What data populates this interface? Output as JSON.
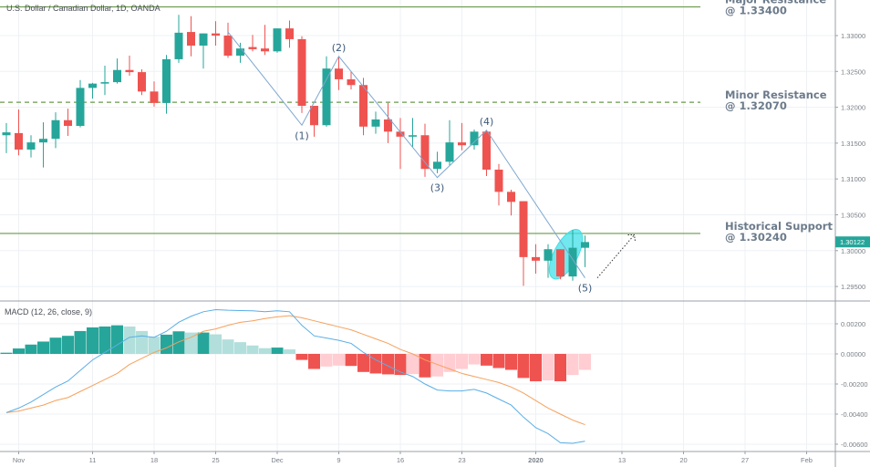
{
  "header": {
    "title": "U.S. Dollar / Canadian Dollar, 1D, OANDA"
  },
  "indicator": {
    "title": "MACD (12, 26, close, 9)"
  },
  "colors": {
    "up": "#26a69a",
    "down": "#ef5350",
    "hist_up_strong": "#26a69a",
    "hist_up_weak": "#b2dfdb",
    "hist_down_strong": "#ef5350",
    "hist_down_weak": "#ffcdd2",
    "macd_line": "#5aaee6",
    "signal_line": "#f6a15c",
    "level_line": "#6a9a4a",
    "highlight": "#40e0e8",
    "wave_line": "#7ea7cf"
  },
  "chart_data": [
    {
      "type": "candlestick",
      "title": "U.S. Dollar / Canadian Dollar, 1D, OANDA",
      "ylim": [
        1.2935,
        1.3385
      ],
      "y_ticks": [
        "1.33000",
        "1.32500",
        "1.32000",
        "1.31500",
        "1.31000",
        "1.30500",
        "1.30000",
        "1.29500"
      ],
      "last_price": "1.30122",
      "grid": true,
      "candles_columns": [
        "date",
        "open",
        "high",
        "low",
        "close"
      ],
      "candles": [
        [
          "2019-10-31",
          1.3161,
          1.3178,
          1.3136,
          1.3165
        ],
        [
          "2019-11-01",
          1.3164,
          1.3197,
          1.3133,
          1.3141
        ],
        [
          "2019-11-04",
          1.3141,
          1.3161,
          1.313,
          1.3151
        ],
        [
          "2019-11-05",
          1.3151,
          1.3179,
          1.3116,
          1.3156
        ],
        [
          "2019-11-06",
          1.3156,
          1.3193,
          1.3143,
          1.3182
        ],
        [
          "2019-11-07",
          1.3182,
          1.3198,
          1.316,
          1.3174
        ],
        [
          "2019-11-08",
          1.3174,
          1.3238,
          1.3172,
          1.3227
        ],
        [
          "2019-11-11",
          1.3227,
          1.3234,
          1.3212,
          1.3233
        ],
        [
          "2019-11-12",
          1.3233,
          1.3258,
          1.3217,
          1.3235
        ],
        [
          "2019-11-13",
          1.3235,
          1.3268,
          1.3233,
          1.3252
        ],
        [
          "2019-11-14",
          1.3252,
          1.3272,
          1.3244,
          1.3249
        ],
        [
          "2019-11-15",
          1.3249,
          1.3253,
          1.3217,
          1.3222
        ],
        [
          "2019-11-18",
          1.3222,
          1.3236,
          1.3201,
          1.3206
        ],
        [
          "2019-11-19",
          1.3206,
          1.3273,
          1.3191,
          1.3267
        ],
        [
          "2019-11-20",
          1.3267,
          1.3329,
          1.3262,
          1.3304
        ],
        [
          "2019-11-21",
          1.3305,
          1.3327,
          1.3271,
          1.3286
        ],
        [
          "2019-11-22",
          1.3286,
          1.3303,
          1.3254,
          1.3303
        ],
        [
          "2019-11-25",
          1.3303,
          1.332,
          1.3286,
          1.33
        ],
        [
          "2019-11-26",
          1.33,
          1.3318,
          1.3269,
          1.3272
        ],
        [
          "2019-11-27",
          1.3272,
          1.329,
          1.3262,
          1.3282
        ],
        [
          "2019-11-28",
          1.3284,
          1.3301,
          1.3278,
          1.3281
        ],
        [
          "2019-11-29",
          1.3282,
          1.3315,
          1.3273,
          1.3278
        ],
        [
          "2019-12-02",
          1.3278,
          1.331,
          1.3276,
          1.331
        ],
        [
          "2019-12-03",
          1.331,
          1.3321,
          1.3283,
          1.3295
        ],
        [
          "2019-12-04",
          1.3295,
          1.3299,
          1.3192,
          1.3202
        ],
        [
          "2019-12-05",
          1.3202,
          1.3202,
          1.3159,
          1.3175
        ],
        [
          "2019-12-06",
          1.3175,
          1.3271,
          1.3173,
          1.3254
        ],
        [
          "2019-12-09",
          1.3254,
          1.3271,
          1.3224,
          1.3239
        ],
        [
          "2019-12-10",
          1.3239,
          1.325,
          1.3225,
          1.3231
        ],
        [
          "2019-12-11",
          1.3231,
          1.3241,
          1.3161,
          1.3173
        ],
        [
          "2019-12-12",
          1.3173,
          1.3194,
          1.3163,
          1.3183
        ],
        [
          "2019-12-13",
          1.3183,
          1.3206,
          1.315,
          1.3166
        ],
        [
          "2019-12-16",
          1.3166,
          1.3185,
          1.3114,
          1.3159
        ],
        [
          "2019-12-17",
          1.3159,
          1.3185,
          1.3145,
          1.3161
        ],
        [
          "2019-12-18",
          1.3161,
          1.3177,
          1.3103,
          1.3114
        ],
        [
          "2019-12-19",
          1.3114,
          1.3138,
          1.3108,
          1.3124
        ],
        [
          "2019-12-20",
          1.3124,
          1.3182,
          1.3118,
          1.3151
        ],
        [
          "2019-12-23",
          1.3151,
          1.3178,
          1.314,
          1.3147
        ],
        [
          "2019-12-24",
          1.3147,
          1.3169,
          1.3141,
          1.3166
        ],
        [
          "2019-12-26",
          1.3166,
          1.3168,
          1.3104,
          1.3113
        ],
        [
          "2019-12-27",
          1.3113,
          1.3121,
          1.3063,
          1.3082
        ],
        [
          "2019-12-30",
          1.3082,
          1.3085,
          1.3049,
          1.3068
        ],
        [
          "2019-12-31",
          1.3069,
          1.3069,
          1.2951,
          1.2991
        ],
        [
          "2020-01-02",
          1.2991,
          1.3009,
          1.2968,
          1.2986
        ],
        [
          "2020-01-03",
          1.2986,
          1.3009,
          1.2962,
          1.3002
        ],
        [
          "2020-01-06",
          1.3002,
          1.3002,
          1.296,
          1.2964
        ],
        [
          "2020-01-07",
          1.2964,
          1.3029,
          1.2958,
          1.3004
        ],
        [
          "2020-01-08",
          1.3004,
          1.3021,
          1.2977,
          1.3012
        ]
      ],
      "levels": [
        {
          "label_line1": "Major Resistance",
          "label_line2": "@ 1.33400",
          "price": 1.334,
          "style": "solid"
        },
        {
          "label_line1": "Minor Resistance",
          "label_line2": "@ 1.32070",
          "price": 1.3207,
          "style": "dashed"
        },
        {
          "label_line1": "Historical Support",
          "label_line2": "@ 1.30240",
          "price": 1.3024,
          "style": "solid"
        }
      ],
      "wave": [
        {
          "label": "",
          "date": "2019-11-26",
          "price": 1.3305
        },
        {
          "label": "(1)",
          "date": "2019-12-04",
          "price": 1.3175,
          "pos": "below"
        },
        {
          "label": "(2)",
          "date": "2019-12-09",
          "price": 1.3271,
          "pos": "above"
        },
        {
          "label": "(3)",
          "date": "2019-12-19",
          "price": 1.3102,
          "pos": "below"
        },
        {
          "label": "(4)",
          "date": "2019-12-26",
          "price": 1.3168,
          "pos": "above"
        },
        {
          "label": "(5)",
          "date": "2020-01-08",
          "price": 1.2962,
          "pos": "below"
        }
      ],
      "projection_arrow": {
        "from": {
          "date": "2020-01-09",
          "price": 1.2962
        },
        "to": {
          "date": "2020-01-14",
          "price": 1.3022
        }
      },
      "highlight_ellipse": {
        "date": "2020-01-06",
        "price": 1.2995
      }
    },
    {
      "type": "macd",
      "title": "MACD (12, 26, close, 9)",
      "ylim": [
        -0.0066,
        0.0036
      ],
      "y_ticks": [
        "0.00200",
        "0.00000",
        "-0.00200",
        "-0.00400",
        "-0.00600"
      ],
      "histogram": [
        8e-05,
        0.00036,
        0.00062,
        0.00082,
        0.00108,
        0.0012,
        0.00152,
        0.00176,
        0.00182,
        0.0019,
        0.00182,
        0.00152,
        0.00114,
        0.00128,
        0.0015,
        0.00142,
        0.00142,
        0.0013,
        0.00096,
        0.00078,
        0.00056,
        0.00038,
        0.00042,
        0.0003,
        -0.0004,
        -0.001,
        -0.00084,
        -0.00078,
        -0.0008,
        -0.0012,
        -0.0013,
        -0.00136,
        -0.0014,
        -0.00134,
        -0.00156,
        -0.0015,
        -0.0012,
        -0.001,
        -0.0007,
        -0.00078,
        -0.00094,
        -0.00106,
        -0.0016,
        -0.00182,
        -0.00176,
        -0.00182,
        -0.0014,
        -0.00106
      ],
      "macd": [
        -0.0039,
        -0.0036,
        -0.0032,
        -0.0027,
        -0.0022,
        -0.0018,
        -0.0011,
        -0.0004,
        0.0001,
        0.0006,
        0.0011,
        0.0012,
        0.0011,
        0.0015,
        0.0021,
        0.0025,
        0.0028,
        0.00294,
        0.0029,
        0.00288,
        0.00286,
        0.0028,
        0.00286,
        0.0028,
        0.0019,
        0.0012,
        0.00105,
        0.0009,
        0.0007,
        0.0001,
        -0.0004,
        -0.0008,
        -0.0012,
        -0.0015,
        -0.002,
        -0.0024,
        -0.00246,
        -0.00246,
        -0.00236,
        -0.0026,
        -0.003,
        -0.0034,
        -0.0042,
        -0.0049,
        -0.0053,
        -0.0059,
        -0.00594,
        -0.0058
      ],
      "signal": [
        -0.0039,
        -0.0038,
        -0.0036,
        -0.0034,
        -0.0031,
        -0.0029,
        -0.0025,
        -0.0021,
        -0.0017,
        -0.0013,
        -0.0007,
        -0.0003,
        0.0001,
        0.0004,
        0.0008,
        0.0011,
        0.0015,
        0.00166,
        0.0019,
        0.0021,
        0.0022,
        0.00235,
        0.00246,
        0.00254,
        0.0024,
        0.0022,
        0.002,
        0.0018,
        0.0016,
        0.0013,
        0.001,
        0.0007,
        0.0003,
        0,
        -0.0004,
        -0.0007,
        -0.001,
        -0.0013,
        -0.0015,
        -0.0017,
        -0.0019,
        -0.0022,
        -0.0026,
        -0.0031,
        -0.0036,
        -0.004,
        -0.0044,
        -0.0047
      ]
    }
  ],
  "x_axis": {
    "ticks": [
      {
        "label": "Nov",
        "date": "2019-11-01"
      },
      {
        "label": "11",
        "date": "2019-11-11"
      },
      {
        "label": "18",
        "date": "2019-11-18"
      },
      {
        "label": "25",
        "date": "2019-11-25"
      },
      {
        "label": "Dec",
        "date": "2019-12-02"
      },
      {
        "label": "9",
        "date": "2019-12-09"
      },
      {
        "label": "16",
        "date": "2019-12-16"
      },
      {
        "label": "23",
        "date": "2019-12-23"
      },
      {
        "label": "2020",
        "date": "2020-01-02",
        "bold": true
      },
      {
        "label": "13",
        "date": "2020-01-13"
      },
      {
        "label": "20",
        "date": "2020-01-20"
      },
      {
        "label": "27",
        "date": "2020-01-27"
      },
      {
        "label": "Feb",
        "date": "2020-02-03"
      }
    ]
  }
}
